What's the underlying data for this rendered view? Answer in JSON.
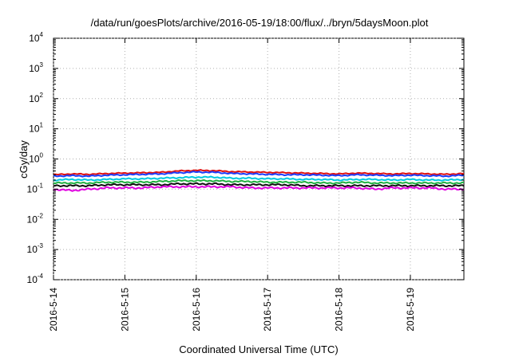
{
  "chart_data": {
    "type": "line",
    "title": "/data/run/goesPlots/archive/2016-05-19/18:00/flux/../bryn/5daysMoon.plot",
    "xlabel": "Coordinated Universal Time (UTC)",
    "ylabel": "cGy/day",
    "y_scale": "log",
    "ylim": [
      0.0001,
      10000
    ],
    "yticks": [
      {
        "base": "10",
        "exp": "4",
        "value": 10000
      },
      {
        "base": "10",
        "exp": "3",
        "value": 1000
      },
      {
        "base": "10",
        "exp": "2",
        "value": 100
      },
      {
        "base": "10",
        "exp": "1",
        "value": 10
      },
      {
        "base": "10",
        "exp": "0",
        "value": 1
      },
      {
        "base": "10",
        "exp": "-1",
        "value": 0.1
      },
      {
        "base": "10",
        "exp": "-2",
        "value": 0.01
      },
      {
        "base": "10",
        "exp": "-3",
        "value": 0.001
      },
      {
        "base": "10",
        "exp": "-4",
        "value": 0.0001
      }
    ],
    "xlim": [
      "2016-05-14T00:00",
      "2016-05-19T18:00"
    ],
    "xticks": [
      {
        "label": "2016-5-14",
        "date": "2016-05-14T00:00"
      },
      {
        "label": "2016-5-15",
        "date": "2016-05-15T00:00"
      },
      {
        "label": "2016-5-16",
        "date": "2016-05-16T00:00"
      },
      {
        "label": "2016-5-17",
        "date": "2016-05-17T00:00"
      },
      {
        "label": "2016-5-18",
        "date": "2016-05-18T00:00"
      },
      {
        "label": "2016-5-19",
        "date": "2016-05-19T00:00"
      }
    ],
    "grid": true,
    "x": [
      "2016-05-14T00:00",
      "2016-05-14T06:00",
      "2016-05-14T12:00",
      "2016-05-14T18:00",
      "2016-05-15T00:00",
      "2016-05-15T06:00",
      "2016-05-15T12:00",
      "2016-05-15T18:00",
      "2016-05-16T00:00",
      "2016-05-16T06:00",
      "2016-05-16T12:00",
      "2016-05-16T18:00",
      "2016-05-17T00:00",
      "2016-05-17T06:00",
      "2016-05-17T12:00",
      "2016-05-17T18:00",
      "2016-05-18T00:00",
      "2016-05-18T06:00",
      "2016-05-18T12:00",
      "2016-05-18T18:00",
      "2016-05-19T00:00",
      "2016-05-19T06:00",
      "2016-05-19T12:00",
      "2016-05-19T18:00"
    ],
    "series": [
      {
        "color": "#e01010",
        "values": [
          0.3,
          0.32,
          0.31,
          0.33,
          0.34,
          0.35,
          0.36,
          0.4,
          0.42,
          0.41,
          0.38,
          0.37,
          0.36,
          0.35,
          0.34,
          0.33,
          0.32,
          0.34,
          0.33,
          0.32,
          0.33,
          0.32,
          0.31,
          0.33
        ]
      },
      {
        "color": "#1a3cff",
        "values": [
          0.27,
          0.28,
          0.27,
          0.29,
          0.3,
          0.31,
          0.32,
          0.35,
          0.37,
          0.36,
          0.33,
          0.32,
          0.31,
          0.3,
          0.3,
          0.29,
          0.28,
          0.3,
          0.29,
          0.28,
          0.29,
          0.28,
          0.27,
          0.29
        ]
      },
      {
        "color": "#00c8e0",
        "values": [
          0.2,
          0.21,
          0.2,
          0.21,
          0.22,
          0.22,
          0.23,
          0.24,
          0.25,
          0.25,
          0.23,
          0.23,
          0.22,
          0.22,
          0.21,
          0.21,
          0.2,
          0.21,
          0.21,
          0.2,
          0.21,
          0.2,
          0.2,
          0.21
        ]
      },
      {
        "color": "#20b040",
        "values": [
          0.16,
          0.16,
          0.16,
          0.17,
          0.17,
          0.17,
          0.18,
          0.19,
          0.19,
          0.19,
          0.18,
          0.18,
          0.17,
          0.17,
          0.17,
          0.16,
          0.16,
          0.17,
          0.16,
          0.16,
          0.16,
          0.16,
          0.16,
          0.16
        ]
      },
      {
        "color": "#101010",
        "values": [
          0.13,
          0.13,
          0.13,
          0.14,
          0.14,
          0.14,
          0.14,
          0.15,
          0.15,
          0.15,
          0.14,
          0.14,
          0.14,
          0.14,
          0.13,
          0.13,
          0.13,
          0.13,
          0.13,
          0.13,
          0.13,
          0.13,
          0.13,
          0.13
        ]
      },
      {
        "color": "#e000e0",
        "values": [
          0.1,
          0.09,
          0.1,
          0.11,
          0.11,
          0.11,
          0.12,
          0.12,
          0.12,
          0.12,
          0.12,
          0.11,
          0.11,
          0.11,
          0.11,
          0.11,
          0.11,
          0.11,
          0.1,
          0.11,
          0.11,
          0.11,
          0.1,
          0.1
        ]
      }
    ]
  }
}
